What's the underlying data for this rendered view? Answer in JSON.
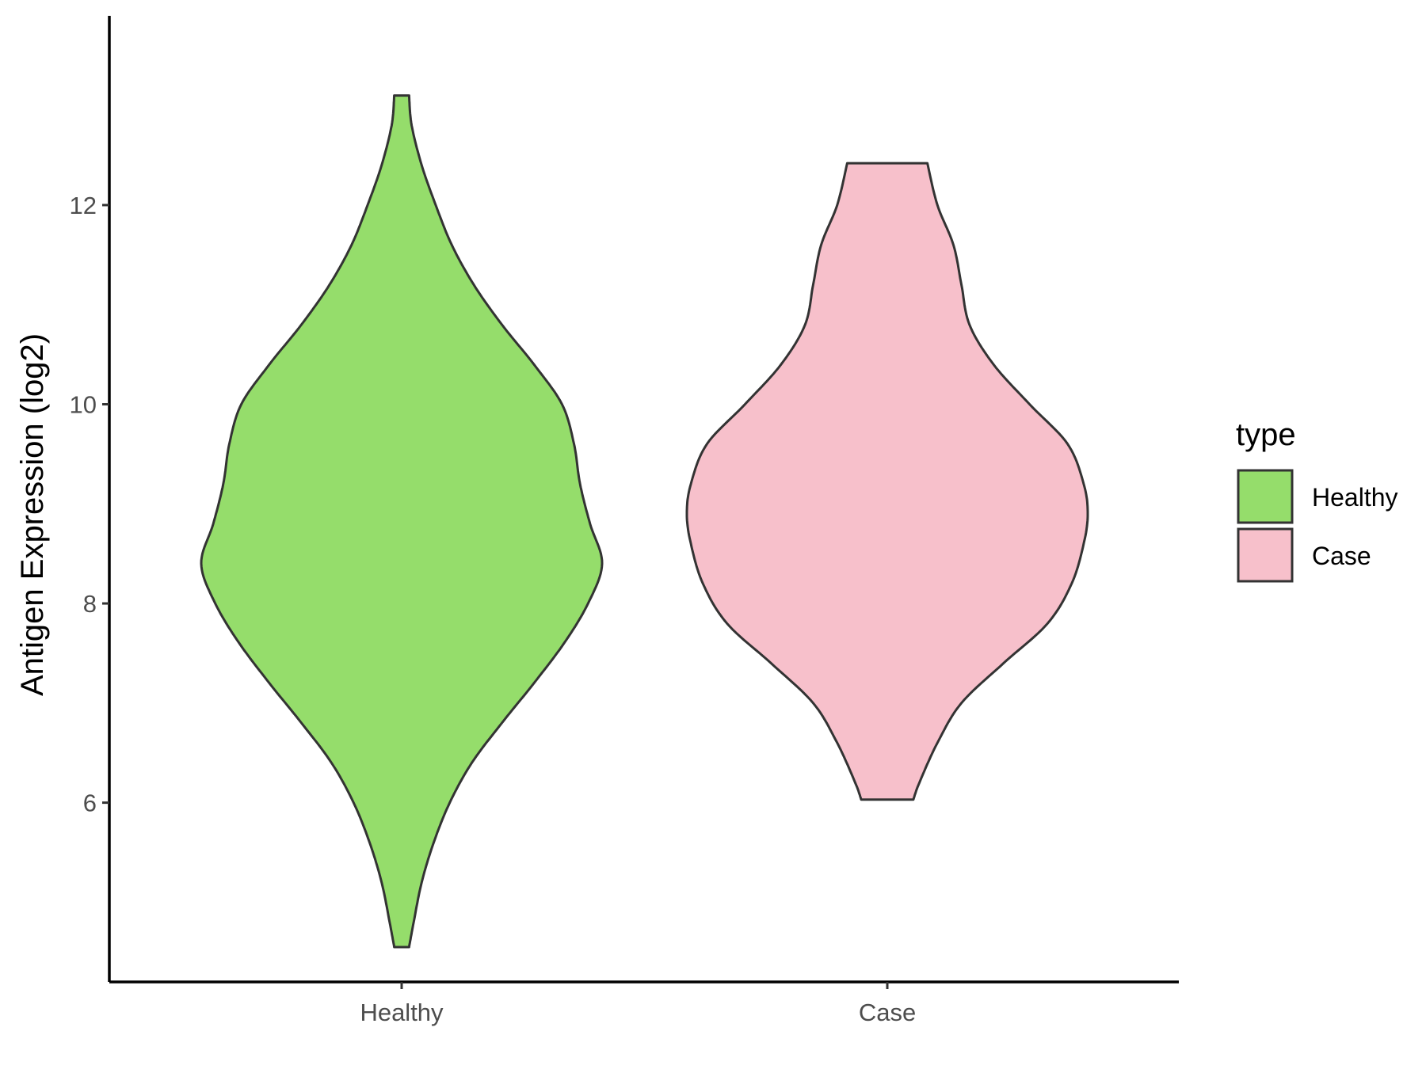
{
  "chart_data": {
    "type": "violin",
    "title": "",
    "xlabel": "",
    "ylabel": "Antigen Expression (log2)",
    "ylim": [
      4.2,
      13.9
    ],
    "yticks": [
      6,
      8,
      10,
      12
    ],
    "grid": false,
    "legend": {
      "title": "type",
      "position": "right",
      "entries": [
        {
          "label": "Healthy",
          "color": "#95dd6b"
        },
        {
          "label": "Case",
          "color": "#f7c0cb"
        }
      ]
    },
    "categories": [
      "Healthy",
      "Case"
    ],
    "series": [
      {
        "name": "Healthy",
        "color": "#95dd6b",
        "min": 4.55,
        "max": 13.1,
        "density_profile": [
          [
            4.55,
            0.037
          ],
          [
            4.8,
            0.06
          ],
          [
            5.2,
            0.1
          ],
          [
            5.6,
            0.16
          ],
          [
            6.0,
            0.24
          ],
          [
            6.4,
            0.35
          ],
          [
            6.8,
            0.5
          ],
          [
            7.2,
            0.66
          ],
          [
            7.6,
            0.81
          ],
          [
            8.0,
            0.93
          ],
          [
            8.4,
            1.0
          ],
          [
            8.8,
            0.94
          ],
          [
            9.2,
            0.89
          ],
          [
            9.6,
            0.86
          ],
          [
            10.0,
            0.8
          ],
          [
            10.4,
            0.66
          ],
          [
            10.8,
            0.5
          ],
          [
            11.2,
            0.36
          ],
          [
            11.6,
            0.25
          ],
          [
            12.0,
            0.17
          ],
          [
            12.4,
            0.1
          ],
          [
            12.8,
            0.05
          ],
          [
            13.1,
            0.037
          ]
        ]
      },
      {
        "name": "Case",
        "color": "#f7c0cb",
        "min": 6.03,
        "max": 12.42,
        "density_profile": [
          [
            6.03,
            0.13
          ],
          [
            6.2,
            0.16
          ],
          [
            6.6,
            0.25
          ],
          [
            7.0,
            0.37
          ],
          [
            7.4,
            0.58
          ],
          [
            7.8,
            0.8
          ],
          [
            8.2,
            0.92
          ],
          [
            8.6,
            0.98
          ],
          [
            8.9,
            1.0
          ],
          [
            9.2,
            0.98
          ],
          [
            9.6,
            0.9
          ],
          [
            10.0,
            0.71
          ],
          [
            10.4,
            0.53
          ],
          [
            10.8,
            0.41
          ],
          [
            11.2,
            0.37
          ],
          [
            11.6,
            0.33
          ],
          [
            12.0,
            0.25
          ],
          [
            12.42,
            0.2
          ]
        ]
      }
    ]
  }
}
